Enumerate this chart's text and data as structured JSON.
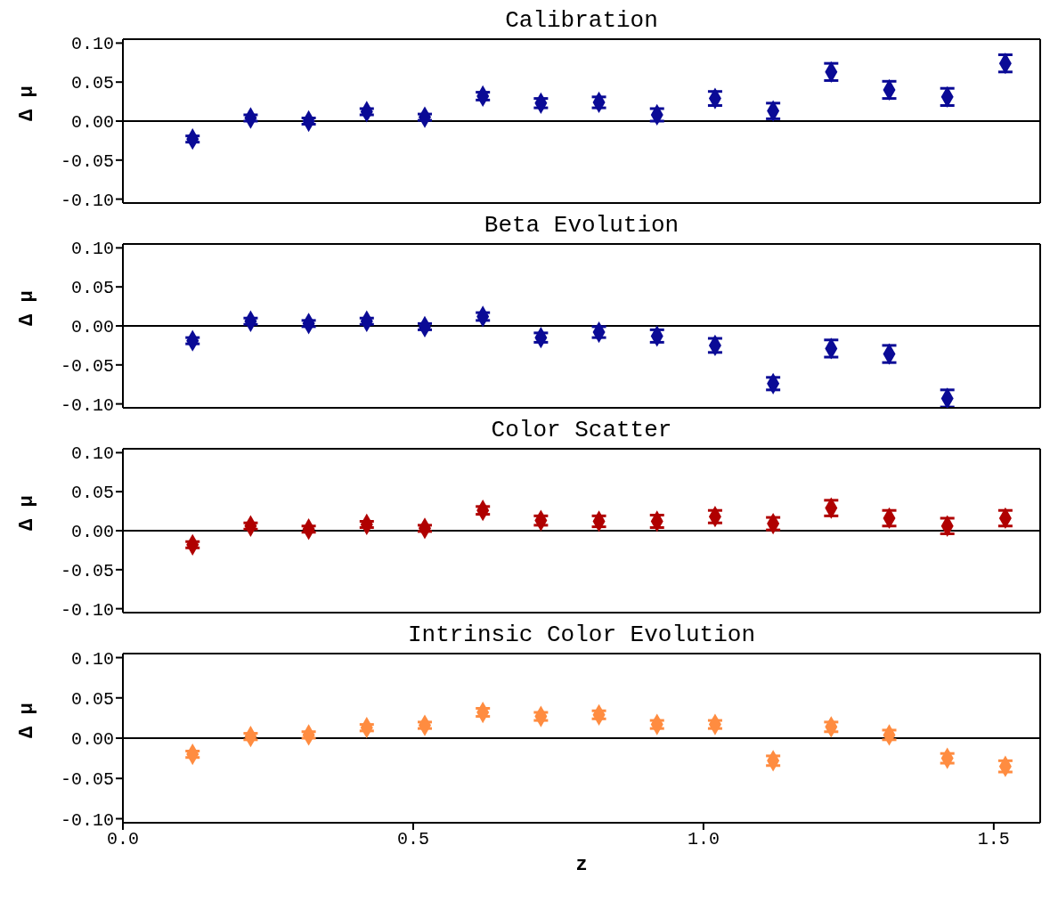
{
  "chart_data": [
    {
      "type": "scatter",
      "title": "Calibration",
      "ylabel": "Δ μ",
      "x": [
        0.12,
        0.22,
        0.32,
        0.42,
        0.52,
        0.62,
        0.72,
        0.82,
        0.92,
        1.02,
        1.12,
        1.22,
        1.32,
        1.42,
        1.52
      ],
      "series": [
        {
          "color": "#0a0a96",
          "values": [
            -0.023,
            0.004,
            0.0,
            0.012,
            0.005,
            0.032,
            0.023,
            0.024,
            0.008,
            0.029,
            0.013,
            0.063,
            0.04,
            0.031,
            0.074
          ],
          "errors": [
            0.004,
            0.004,
            0.004,
            0.004,
            0.004,
            0.005,
            0.006,
            0.007,
            0.008,
            0.009,
            0.01,
            0.011,
            0.011,
            0.011,
            0.011
          ]
        }
      ],
      "xlim": [
        0,
        1.58
      ],
      "xticks": [
        {
          "value": 0,
          "label": null
        },
        {
          "value": 0.5,
          "label": null
        },
        {
          "value": 1,
          "label": null
        },
        {
          "value": 1.5,
          "label": null
        }
      ],
      "ylim": [
        -0.105,
        0.105
      ],
      "yticks": [
        {
          "value": -0.1,
          "label": "-0.10"
        },
        {
          "value": -0.05,
          "label": "-0.05"
        },
        {
          "value": 0,
          "label": "0.00"
        },
        {
          "value": 0.05,
          "label": "0.05"
        },
        {
          "value": 0.1,
          "label": "0.10"
        }
      ],
      "ref_lines": [
        {
          "axis": "y",
          "value": 0,
          "color": "#000000"
        }
      ],
      "tick_labels": "y",
      "marker": "diamond",
      "grid": false,
      "legend": false
    },
    {
      "type": "scatter",
      "title": "Beta Evolution",
      "ylabel": "Δ μ",
      "x": [
        0.12,
        0.22,
        0.32,
        0.42,
        0.52,
        0.62,
        0.72,
        0.82,
        0.92,
        1.02,
        1.12,
        1.22,
        1.32,
        1.42
      ],
      "series": [
        {
          "color": "#0a0a96",
          "values": [
            -0.019,
            0.006,
            0.003,
            0.006,
            -0.001,
            0.012,
            -0.015,
            -0.008,
            -0.013,
            -0.025,
            -0.074,
            -0.029,
            -0.036,
            -0.093
          ],
          "errors": [
            0.004,
            0.004,
            0.004,
            0.004,
            0.004,
            0.005,
            0.006,
            0.007,
            0.008,
            0.009,
            0.008,
            0.011,
            0.011,
            0.011
          ]
        }
      ],
      "xlim": [
        0,
        1.58
      ],
      "xticks": [
        {
          "value": 0,
          "label": null
        },
        {
          "value": 0.5,
          "label": null
        },
        {
          "value": 1,
          "label": null
        },
        {
          "value": 1.5,
          "label": null
        }
      ],
      "ylim": [
        -0.105,
        0.105
      ],
      "yticks": [
        {
          "value": -0.1,
          "label": "-0.10"
        },
        {
          "value": -0.05,
          "label": "-0.05"
        },
        {
          "value": 0,
          "label": "0.00"
        },
        {
          "value": 0.05,
          "label": "0.05"
        },
        {
          "value": 0.1,
          "label": "0.10"
        }
      ],
      "ref_lines": [
        {
          "axis": "y",
          "value": 0,
          "color": "#000000"
        }
      ],
      "tick_labels": "y",
      "marker": "diamond",
      "grid": false,
      "legend": false
    },
    {
      "type": "scatter",
      "title": "Color Scatter",
      "ylabel": "Δ μ",
      "x": [
        0.12,
        0.22,
        0.32,
        0.42,
        0.52,
        0.62,
        0.72,
        0.82,
        0.92,
        1.02,
        1.12,
        1.22,
        1.32,
        1.42,
        1.52
      ],
      "series": [
        {
          "color": "#b00000",
          "values": [
            -0.018,
            0.006,
            0.002,
            0.008,
            0.003,
            0.026,
            0.013,
            0.012,
            0.012,
            0.018,
            0.009,
            0.029,
            0.016,
            0.006,
            0.016
          ],
          "errors": [
            0.004,
            0.004,
            0.004,
            0.004,
            0.004,
            0.005,
            0.006,
            0.007,
            0.008,
            0.008,
            0.008,
            0.01,
            0.01,
            0.01,
            0.01
          ]
        }
      ],
      "xlim": [
        0,
        1.58
      ],
      "xticks": [
        {
          "value": 0,
          "label": null
        },
        {
          "value": 0.5,
          "label": null
        },
        {
          "value": 1,
          "label": null
        },
        {
          "value": 1.5,
          "label": null
        }
      ],
      "ylim": [
        -0.105,
        0.105
      ],
      "yticks": [
        {
          "value": -0.1,
          "label": "-0.10"
        },
        {
          "value": -0.05,
          "label": "-0.05"
        },
        {
          "value": 0,
          "label": "0.00"
        },
        {
          "value": 0.05,
          "label": "0.05"
        },
        {
          "value": 0.1,
          "label": "0.10"
        }
      ],
      "ref_lines": [
        {
          "axis": "y",
          "value": 0,
          "color": "#000000"
        }
      ],
      "tick_labels": "y",
      "marker": "diamond",
      "grid": false,
      "legend": false
    },
    {
      "type": "scatter",
      "title": "Intrinsic Color Evolution",
      "xlabel": "z",
      "ylabel": "Δ μ",
      "x": [
        0.12,
        0.22,
        0.32,
        0.42,
        0.52,
        0.62,
        0.72,
        0.82,
        0.92,
        1.02,
        1.12,
        1.22,
        1.32,
        1.42,
        1.52
      ],
      "series": [
        {
          "color": "#ff8c40",
          "values": [
            -0.02,
            0.002,
            0.004,
            0.013,
            0.016,
            0.032,
            0.027,
            0.029,
            0.017,
            0.017,
            -0.028,
            0.014,
            0.004,
            -0.025,
            -0.035
          ],
          "errors": [
            0.004,
            0.004,
            0.004,
            0.004,
            0.004,
            0.005,
            0.005,
            0.005,
            0.005,
            0.005,
            0.006,
            0.006,
            0.006,
            0.006,
            0.007
          ]
        }
      ],
      "xlim": [
        0,
        1.58
      ],
      "xticks": [
        {
          "value": 0,
          "label": "0.0"
        },
        {
          "value": 0.5,
          "label": "0.5"
        },
        {
          "value": 1,
          "label": "1.0"
        },
        {
          "value": 1.5,
          "label": "1.5"
        }
      ],
      "ylim": [
        -0.105,
        0.105
      ],
      "yticks": [
        {
          "value": -0.1,
          "label": "-0.10"
        },
        {
          "value": -0.05,
          "label": "-0.05"
        },
        {
          "value": 0,
          "label": "0.00"
        },
        {
          "value": 0.05,
          "label": "0.05"
        },
        {
          "value": 0.1,
          "label": "0.10"
        }
      ],
      "ref_lines": [
        {
          "axis": "y",
          "value": 0,
          "color": "#000000"
        }
      ],
      "marker": "diamond",
      "grid": false,
      "legend": false
    }
  ]
}
